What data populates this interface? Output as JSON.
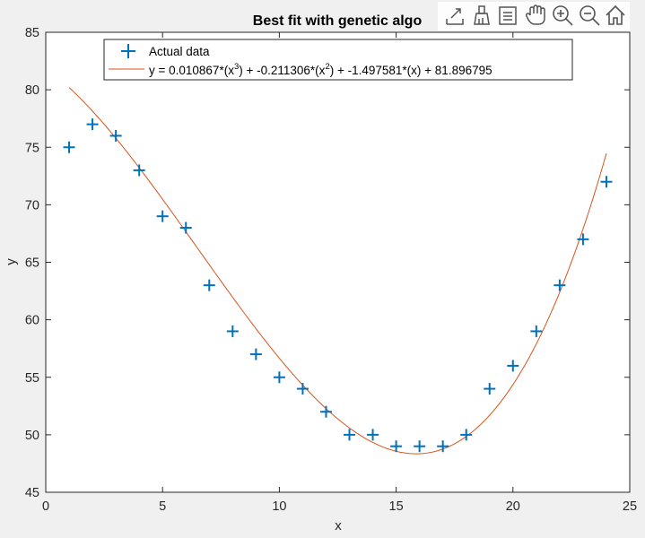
{
  "chart_data": {
    "type": "scatter",
    "title": "Best fit with genetic algo",
    "xlabel": "x",
    "ylabel": "y",
    "xlim": [
      0,
      25
    ],
    "ylim": [
      45,
      85
    ],
    "xticks": [
      0,
      5,
      10,
      15,
      20,
      25
    ],
    "yticks": [
      45,
      50,
      55,
      60,
      65,
      70,
      75,
      80,
      85
    ],
    "grid": false,
    "legend_position": "top",
    "series": [
      {
        "name": "Actual data",
        "kind": "marker",
        "marker": "plus",
        "color": "#0072bd",
        "x": [
          1,
          2,
          3,
          4,
          5,
          6,
          7,
          8,
          9,
          10,
          11,
          12,
          13,
          14,
          15,
          16,
          17,
          18,
          19,
          20,
          21,
          22,
          23,
          24
        ],
        "y": [
          75,
          77,
          76,
          73,
          69,
          68,
          63,
          59,
          57,
          55,
          54,
          52,
          50,
          50,
          49,
          49,
          49,
          50,
          54,
          56,
          59,
          63,
          67,
          72
        ]
      },
      {
        "name_parts": [
          "y = 0.010867*(x",
          "3",
          ") + -0.211306*(x",
          "2",
          ") + -1.497581*(x) + 81.896795"
        ],
        "kind": "line",
        "color": "#d95319",
        "coefficients": [
          0.010867,
          -0.211306,
          -1.497581,
          81.896795
        ],
        "x_range": [
          1,
          24
        ]
      }
    ]
  },
  "toolbar": {
    "items": [
      "export-icon",
      "brush-icon",
      "data-tips-icon",
      "pan-icon",
      "zoom-in-icon",
      "zoom-out-icon",
      "home-icon"
    ]
  }
}
